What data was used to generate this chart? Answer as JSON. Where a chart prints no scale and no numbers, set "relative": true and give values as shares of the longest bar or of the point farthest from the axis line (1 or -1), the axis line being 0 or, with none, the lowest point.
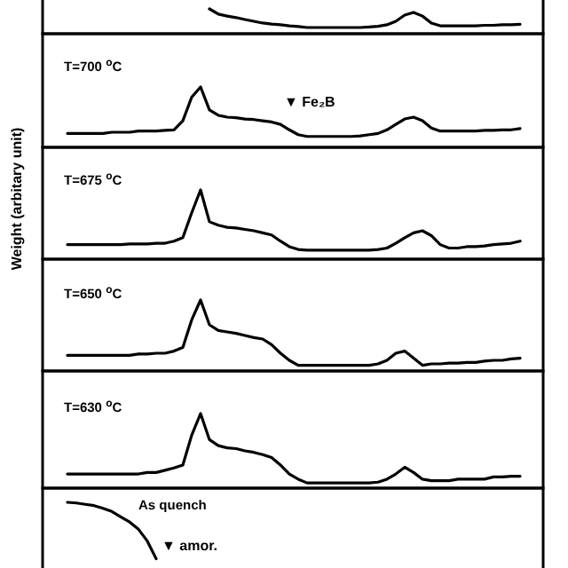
{
  "chart_data": [
    {
      "type": "line",
      "relative": true,
      "color": "#000000",
      "categories": [
        null,
        null,
        null,
        null,
        null,
        null,
        null,
        null,
        null,
        null,
        null,
        null,
        null,
        null,
        null,
        null,
        null,
        null,
        null,
        null,
        null,
        null,
        null,
        null,
        null,
        null,
        null,
        null,
        null,
        null,
        null,
        null,
        null,
        null,
        null,
        null,
        null,
        null,
        null,
        null,
        null,
        null,
        null,
        null,
        null,
        null,
        null,
        null,
        null,
        null,
        null,
        null
      ],
      "values": [
        null,
        null,
        null,
        null,
        null,
        null,
        null,
        null,
        null,
        null,
        null,
        null,
        null,
        null,
        null,
        null,
        1,
        0.79,
        0.71,
        0.65,
        0.57,
        0.5,
        0.43,
        0.39,
        0.36,
        0.32,
        0.29,
        0.25,
        0.25,
        0.25,
        0.25,
        0.25,
        0.25,
        0.25,
        0.27,
        0.3,
        0.36,
        0.5,
        0.75,
        0.86,
        0.71,
        0.43,
        0.32,
        0.32,
        0.32,
        0.32,
        0.32,
        0.34,
        0.34,
        0.36,
        0.36,
        0.38
      ]
    },
    {
      "type": "line",
      "relative": true,
      "color": "#000000",
      "title": "T=700 $^{o}$C",
      "annotations": [
        "▼ Fe₂B"
      ],
      "categories": [
        null,
        null,
        null,
        null,
        null,
        null,
        null,
        null,
        null,
        null,
        null,
        null,
        null,
        null,
        null,
        null,
        null,
        null,
        null,
        null,
        null,
        null,
        null,
        null,
        null,
        null,
        null,
        null,
        null,
        null,
        null,
        null,
        null,
        null,
        null,
        null,
        null,
        null,
        null,
        null,
        null,
        null,
        null,
        null,
        null,
        null,
        null,
        null,
        null,
        null,
        null,
        null
      ],
      "values": [
        0.23,
        0.23,
        0.23,
        0.23,
        0.23,
        0.25,
        0.25,
        0.25,
        0.27,
        0.27,
        0.27,
        0.28,
        0.29,
        0.44,
        0.83,
        1,
        0.62,
        0.53,
        0.5,
        0.49,
        0.47,
        0.46,
        0.44,
        0.42,
        0.38,
        0.29,
        0.21,
        0.18,
        0.18,
        0.18,
        0.18,
        0.18,
        0.18,
        0.19,
        0.21,
        0.23,
        0.29,
        0.38,
        0.47,
        0.5,
        0.44,
        0.32,
        0.27,
        0.27,
        0.27,
        0.27,
        0.27,
        0.28,
        0.28,
        0.29,
        0.29,
        0.31
      ]
    },
    {
      "type": "line",
      "relative": true,
      "color": "#000000",
      "title": "T=675 $^{o}$C",
      "ylabel": "Weight (arbitary unit)",
      "categories": [
        null,
        null,
        null,
        null,
        null,
        null,
        null,
        null,
        null,
        null,
        null,
        null,
        null,
        null,
        null,
        null,
        null,
        null,
        null,
        null,
        null,
        null,
        null,
        null,
        null,
        null,
        null,
        null,
        null,
        null,
        null,
        null,
        null,
        null,
        null,
        null,
        null,
        null,
        null,
        null,
        null,
        null,
        null,
        null,
        null,
        null,
        null,
        null,
        null,
        null,
        null,
        null
      ],
      "values": [
        0.21,
        0.21,
        0.21,
        0.21,
        0.21,
        0.21,
        0.21,
        0.22,
        0.22,
        0.22,
        0.23,
        0.23,
        0.26,
        0.31,
        0.67,
        1,
        0.54,
        0.49,
        0.46,
        0.45,
        0.43,
        0.41,
        0.38,
        0.35,
        0.26,
        0.18,
        0.14,
        0.13,
        0.13,
        0.13,
        0.13,
        0.13,
        0.13,
        0.13,
        0.13,
        0.14,
        0.16,
        0.23,
        0.31,
        0.38,
        0.41,
        0.34,
        0.21,
        0.16,
        0.16,
        0.18,
        0.18,
        0.19,
        0.21,
        0.22,
        0.23,
        0.26
      ]
    },
    {
      "type": "line",
      "relative": true,
      "color": "#000000",
      "title": "T=650 $^{o}$C",
      "categories": [
        null,
        null,
        null,
        null,
        null,
        null,
        null,
        null,
        null,
        null,
        null,
        null,
        null,
        null,
        null,
        null,
        null,
        null,
        null,
        null,
        null,
        null,
        null,
        null,
        null,
        null,
        null,
        null,
        null,
        null,
        null,
        null,
        null,
        null,
        null,
        null,
        null,
        null,
        null,
        null,
        null,
        null,
        null,
        null,
        null,
        null,
        null,
        null,
        null,
        null,
        null,
        null
      ],
      "values": [
        0.22,
        0.22,
        0.22,
        0.22,
        0.22,
        0.22,
        0.22,
        0.22,
        0.24,
        0.24,
        0.25,
        0.25,
        0.28,
        0.33,
        0.72,
        1,
        0.65,
        0.57,
        0.55,
        0.53,
        0.5,
        0.47,
        0.45,
        0.37,
        0.25,
        0.15,
        0.08,
        0.08,
        0.08,
        0.08,
        0.08,
        0.08,
        0.08,
        0.08,
        0.08,
        0.1,
        0.15,
        0.25,
        0.28,
        0.18,
        0.08,
        0.1,
        0.1,
        0.11,
        0.11,
        0.12,
        0.12,
        0.14,
        0.15,
        0.15,
        0.17,
        0.18
      ]
    },
    {
      "type": "line",
      "relative": true,
      "color": "#000000",
      "title": "T=630 $^{o}$C",
      "categories": [
        null,
        null,
        null,
        null,
        null,
        null,
        null,
        null,
        null,
        null,
        null,
        null,
        null,
        null,
        null,
        null,
        null,
        null,
        null,
        null,
        null,
        null,
        null,
        null,
        null,
        null,
        null,
        null,
        null,
        null,
        null,
        null,
        null,
        null,
        null,
        null,
        null,
        null,
        null,
        null,
        null,
        null,
        null,
        null,
        null,
        null,
        null,
        null,
        null,
        null,
        null,
        null
      ],
      "values": [
        0.19,
        0.19,
        0.19,
        0.19,
        0.19,
        0.19,
        0.19,
        0.19,
        0.19,
        0.21,
        0.21,
        0.24,
        0.27,
        0.31,
        0.71,
        1,
        0.65,
        0.57,
        0.54,
        0.53,
        0.5,
        0.48,
        0.45,
        0.41,
        0.31,
        0.19,
        0.12,
        0.07,
        0.07,
        0.07,
        0.07,
        0.07,
        0.07,
        0.07,
        0.07,
        0.08,
        0.12,
        0.19,
        0.28,
        0.21,
        0.12,
        0.1,
        0.1,
        0.1,
        0.12,
        0.12,
        0.12,
        0.12,
        0.15,
        0.15,
        0.16,
        0.16
      ]
    },
    {
      "type": "line",
      "relative": true,
      "color": "#000000",
      "title": "As quench",
      "annotations": [
        "▼ amor."
      ],
      "categories": [
        null,
        null,
        null,
        null,
        null,
        null,
        null,
        null,
        null,
        null,
        null
      ],
      "values": [
        1,
        0.99,
        0.97,
        0.95,
        0.91,
        0.86,
        0.78,
        0.7,
        0.59,
        0.41,
        0.14
      ]
    }
  ]
}
